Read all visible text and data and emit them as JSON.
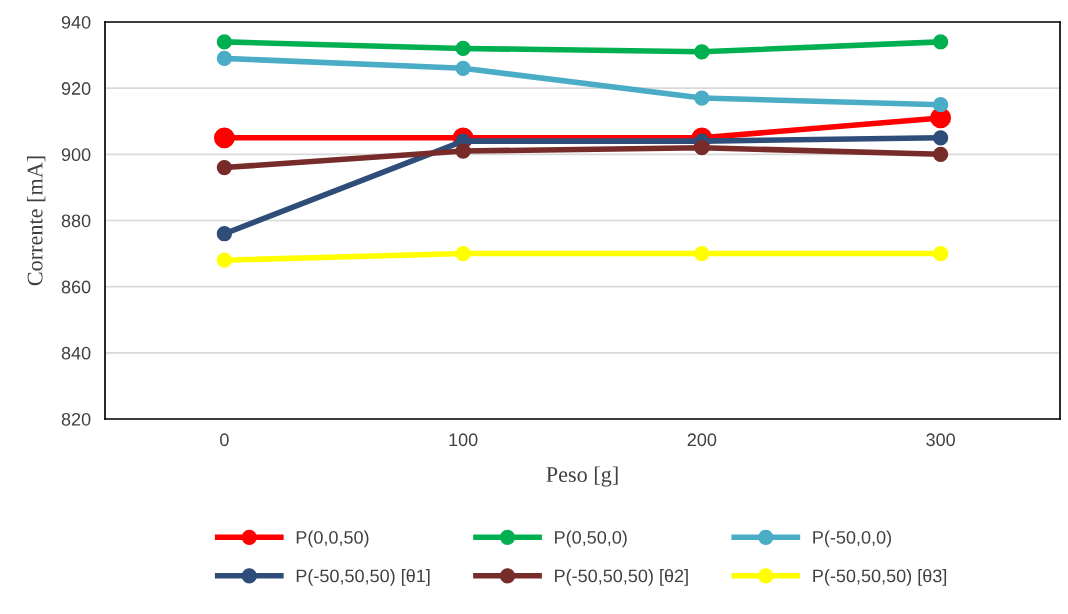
{
  "chart_data": {
    "type": "line",
    "xlabel": "Peso [g]",
    "ylabel": "Corrente [mA]",
    "categories": [
      "0",
      "100",
      "200",
      "300"
    ],
    "series": [
      {
        "name": "P(0,0,50)",
        "color": "#ff0000",
        "values": [
          905,
          905,
          905,
          911
        ]
      },
      {
        "name": "P(0,50,0)",
        "color": "#00b050",
        "values": [
          934,
          932,
          931,
          934
        ]
      },
      {
        "name": "P(-50,0,0)",
        "color": "#4bacc6",
        "values": [
          929,
          926,
          917,
          915
        ]
      },
      {
        "name": "P(-50,50,50) [θ1]",
        "color": "#2e4d78",
        "values": [
          876,
          904,
          904,
          905
        ]
      },
      {
        "name": "P(-50,50,50) [θ2]",
        "color": "#772c2a",
        "values": [
          896,
          901,
          902,
          900
        ]
      },
      {
        "name": "P(-50,50,50) [θ3]",
        "color": "#ffff00",
        "values": [
          868,
          870,
          870,
          870
        ]
      }
    ],
    "ylim": [
      820,
      940
    ],
    "yticks": [
      820,
      840,
      860,
      880,
      900,
      920,
      940
    ],
    "grid": "y",
    "legend": "bottom",
    "marker": "circle",
    "line_style": "solid"
  }
}
